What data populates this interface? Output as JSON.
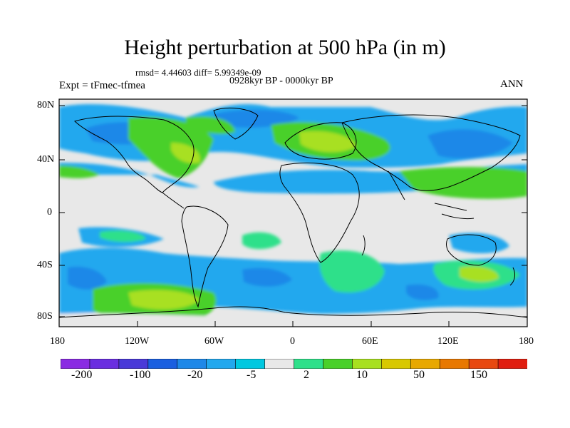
{
  "title": "Height perturbation at 500 hPa (in m)",
  "stats": "rmsd= 4.44603 diff= 5.99349e-09",
  "period": "0928kyr BP - 0000kyr BP",
  "expt": "Expt = tFmec-tfmea",
  "season": "ANN",
  "lat_labels": [
    "80N",
    "40N",
    "0",
    "40S",
    "80S"
  ],
  "lon_labels": [
    "180",
    "120W",
    "60W",
    "0",
    "60E",
    "120E",
    "180"
  ],
  "colorbar": {
    "labels": [
      "-200",
      "-100",
      "-20",
      "-5",
      "2",
      "10",
      "50",
      "150"
    ],
    "colors": [
      "#8a2be2",
      "#6a2ee0",
      "#4a3ad8",
      "#1a5fe0",
      "#1e88e8",
      "#22a8ee",
      "#00c8e0",
      "#e8e8e8",
      "#2ee08a",
      "#4ad02a",
      "#a8e020",
      "#d8c800",
      "#e8a800",
      "#e87800",
      "#e84810",
      "#e01e10"
    ]
  },
  "chart_data": {
    "type": "heatmap",
    "title": "Height perturbation at 500 hPa (in m)",
    "variable": "geopotential height perturbation",
    "units": "m",
    "xlim": [
      -180,
      180
    ],
    "ylim": [
      -90,
      90
    ],
    "contour_levels_labeled": [
      -200,
      -100,
      -20,
      -5,
      2,
      10,
      50,
      150
    ]
  }
}
